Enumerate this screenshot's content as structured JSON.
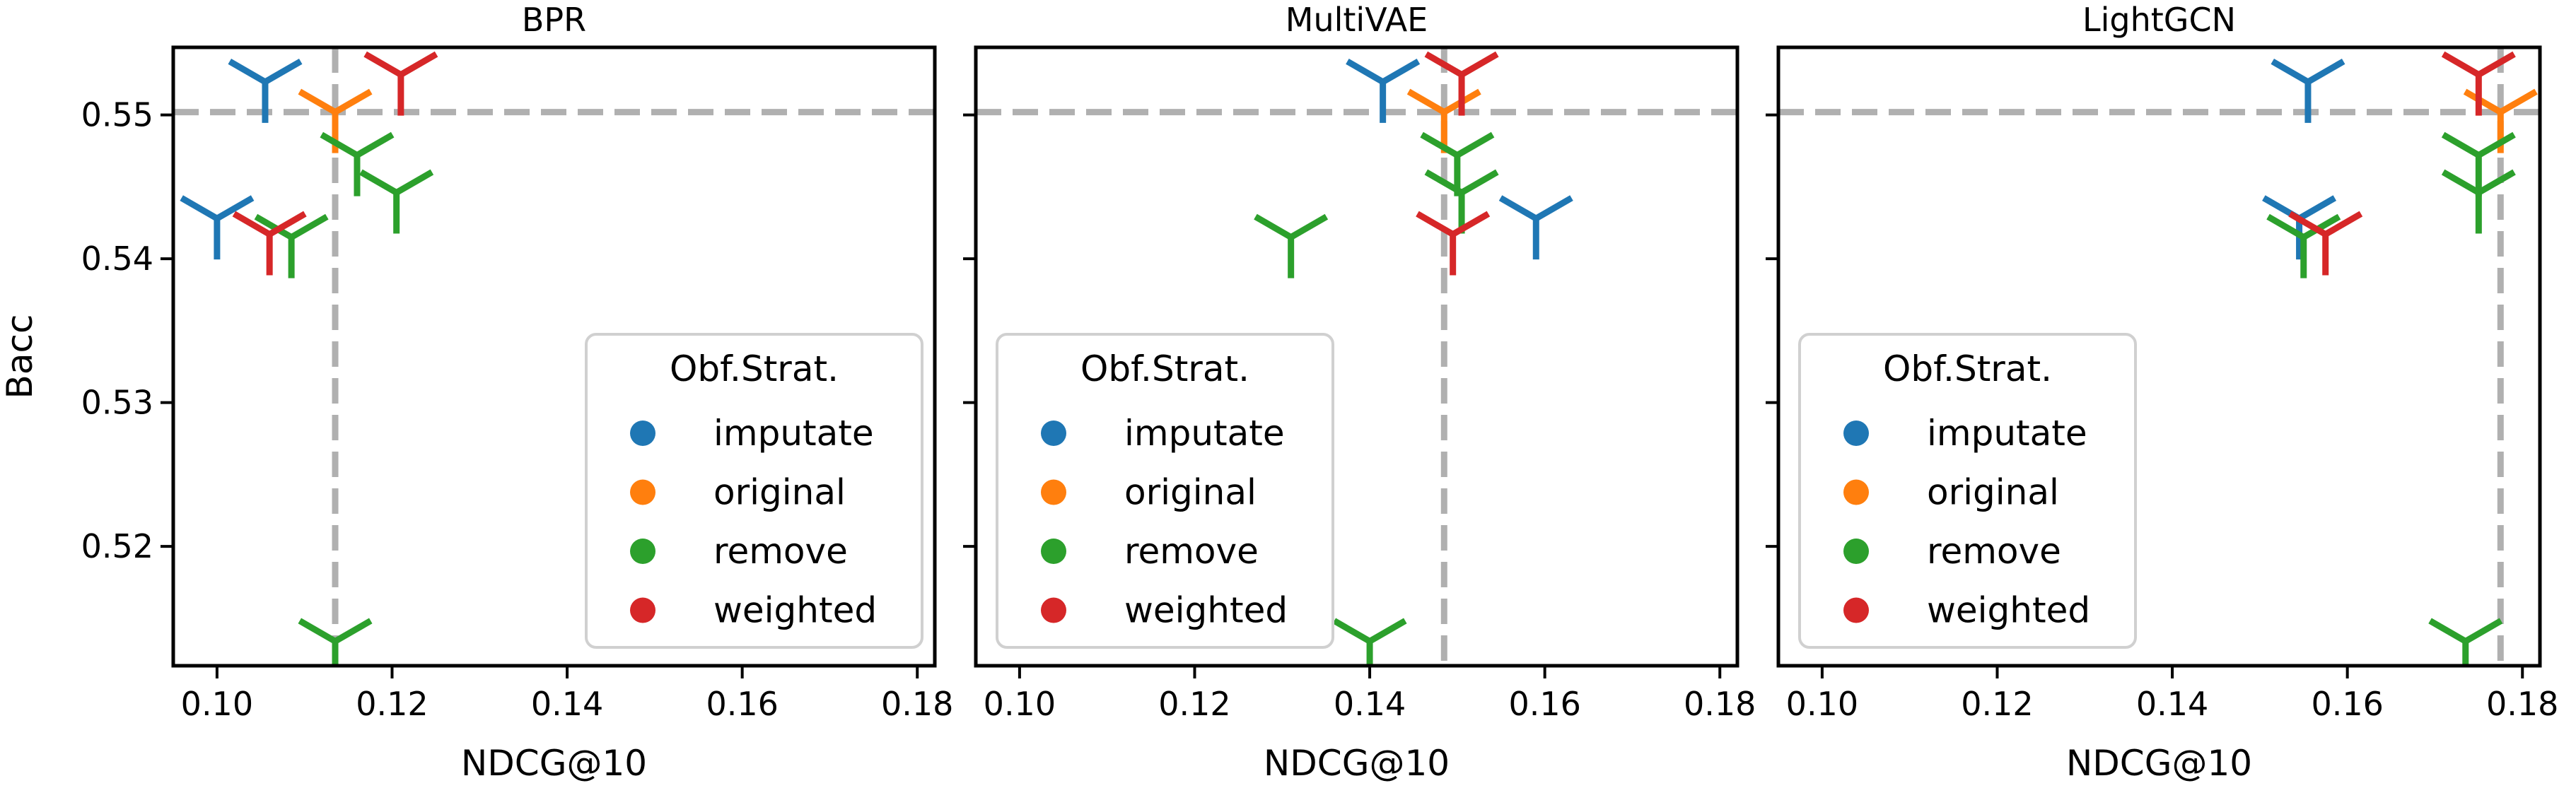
{
  "colors": {
    "imputate": "#1f77b4",
    "original": "#ff7f0e",
    "remove": "#2ca02c",
    "weighted": "#d62728",
    "reference": "#b0b0b0"
  },
  "chart_data": [
    {
      "type": "scatter",
      "title": "BPR",
      "xlabel": "NDCG@10",
      "ylabel": "Bacc",
      "xlim": [
        0.095,
        0.182
      ],
      "ylim": [
        0.5117,
        0.5547
      ],
      "xticks": [
        "0.10",
        "0.12",
        "0.14",
        "0.16",
        "0.18"
      ],
      "yticks": [
        "0.52",
        "0.53",
        "0.54",
        "0.55"
      ],
      "marker": "tri_down",
      "reference": {
        "x": 0.1135,
        "y": 0.5502
      },
      "legend": {
        "title": "Obf.Strat.",
        "position": "lower-right",
        "entries": [
          "imputate",
          "original",
          "remove",
          "weighted"
        ]
      },
      "series": [
        {
          "name": "imputate",
          "points": [
            {
              "x": 0.1055,
              "y": 0.5523
            },
            {
              "x": 0.1,
              "y": 0.5428
            }
          ]
        },
        {
          "name": "original",
          "points": [
            {
              "x": 0.1135,
              "y": 0.5502
            }
          ]
        },
        {
          "name": "remove",
          "points": [
            {
              "x": 0.116,
              "y": 0.5472
            },
            {
              "x": 0.1205,
              "y": 0.5446
            },
            {
              "x": 0.1085,
              "y": 0.5415
            },
            {
              "x": 0.1135,
              "y": 0.5134
            }
          ]
        },
        {
          "name": "weighted",
          "points": [
            {
              "x": 0.121,
              "y": 0.5528
            },
            {
              "x": 0.106,
              "y": 0.5417
            }
          ]
        }
      ]
    },
    {
      "type": "scatter",
      "title": "MultiVAE",
      "xlabel": "NDCG@10",
      "ylabel": "",
      "xlim": [
        0.095,
        0.182
      ],
      "ylim": [
        0.5117,
        0.5547
      ],
      "xticks": [
        "0.10",
        "0.12",
        "0.14",
        "0.16",
        "0.18"
      ],
      "yticks": [],
      "marker": "tri_down",
      "reference": {
        "x": 0.1485,
        "y": 0.5502
      },
      "legend": {
        "title": "Obf.Strat.",
        "position": "lower-left",
        "entries": [
          "imputate",
          "original",
          "remove",
          "weighted"
        ]
      },
      "series": [
        {
          "name": "imputate",
          "points": [
            {
              "x": 0.1415,
              "y": 0.5523
            },
            {
              "x": 0.159,
              "y": 0.5428
            }
          ]
        },
        {
          "name": "original",
          "points": [
            {
              "x": 0.1485,
              "y": 0.5502
            }
          ]
        },
        {
          "name": "remove",
          "points": [
            {
              "x": 0.15,
              "y": 0.5472
            },
            {
              "x": 0.1505,
              "y": 0.5446
            },
            {
              "x": 0.131,
              "y": 0.5415
            },
            {
              "x": 0.14,
              "y": 0.5134
            }
          ]
        },
        {
          "name": "weighted",
          "points": [
            {
              "x": 0.1505,
              "y": 0.5528
            },
            {
              "x": 0.1495,
              "y": 0.5417
            }
          ]
        }
      ]
    },
    {
      "type": "scatter",
      "title": "LightGCN",
      "xlabel": "NDCG@10",
      "ylabel": "",
      "xlim": [
        0.095,
        0.182
      ],
      "ylim": [
        0.5117,
        0.5547
      ],
      "xticks": [
        "0.10",
        "0.12",
        "0.14",
        "0.16",
        "0.18"
      ],
      "yticks": [],
      "marker": "tri_down",
      "reference": {
        "x": 0.1775,
        "y": 0.5502
      },
      "legend": {
        "title": "Obf.Strat.",
        "position": "lower-left",
        "entries": [
          "imputate",
          "original",
          "remove",
          "weighted"
        ]
      },
      "series": [
        {
          "name": "imputate",
          "points": [
            {
              "x": 0.1555,
              "y": 0.5523
            },
            {
              "x": 0.1545,
              "y": 0.5428
            }
          ]
        },
        {
          "name": "original",
          "points": [
            {
              "x": 0.1775,
              "y": 0.5502
            }
          ]
        },
        {
          "name": "remove",
          "points": [
            {
              "x": 0.175,
              "y": 0.5472
            },
            {
              "x": 0.175,
              "y": 0.5446
            },
            {
              "x": 0.155,
              "y": 0.5415
            },
            {
              "x": 0.1735,
              "y": 0.5134
            }
          ]
        },
        {
          "name": "weighted",
          "points": [
            {
              "x": 0.175,
              "y": 0.5528
            },
            {
              "x": 0.1575,
              "y": 0.5417
            }
          ]
        }
      ]
    }
  ]
}
